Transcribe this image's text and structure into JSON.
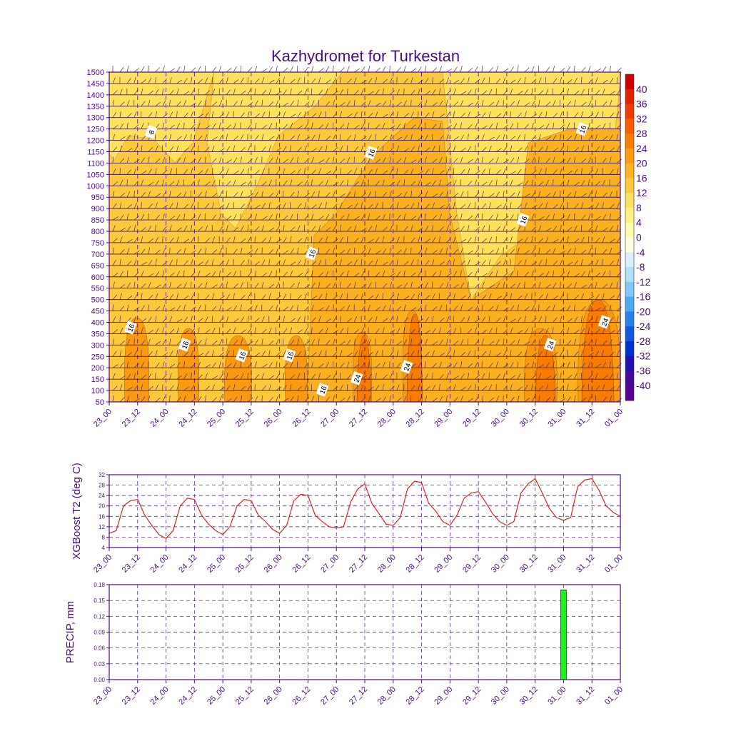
{
  "chart_data": [
    {
      "type": "heatmap",
      "title": "Kazhydromet for Turkestan",
      "x_tick_labels": [
        "23_00",
        "23_12",
        "24_00",
        "24_12",
        "25_00",
        "25_12",
        "26_00",
        "26_12",
        "27_00",
        "27_12",
        "28_00",
        "28_12",
        "29_00",
        "29_12",
        "30_00",
        "30_12",
        "31_00",
        "31_12",
        "01_00"
      ],
      "y_tick_labels": [
        "1500",
        "1450",
        "1400",
        "1350",
        "1300",
        "1250",
        "1200",
        "1150",
        "1100",
        "1050",
        "1000",
        "950",
        "900",
        "850",
        "800",
        "750",
        "700",
        "650",
        "600",
        "550",
        "500",
        "450",
        "400",
        "350",
        "300",
        "250",
        "200",
        "150",
        "100",
        "50"
      ],
      "ylim": [
        50,
        1500
      ],
      "colorbar": {
        "labels": [
          "40",
          "36",
          "32",
          "28",
          "24",
          "20",
          "16",
          "12",
          "8",
          "4",
          "0",
          "-4",
          "-8",
          "-12",
          "-16",
          "-20",
          "-24",
          "-28",
          "-32",
          "-36",
          "-40"
        ],
        "colors": [
          "#cc0000",
          "#e02000",
          "#f03c00",
          "#f85c00",
          "#fa7c00",
          "#fc9a10",
          "#fcb420",
          "#fcc83c",
          "#fde05c",
          "#fef082",
          "#fefcb0",
          "#fefedc",
          "#d8f0fa",
          "#b0e0f8",
          "#80c8f8",
          "#50a8f0",
          "#2880e8",
          "#1058e0",
          "#0030d0",
          "#2010b0",
          "#480898",
          "#5a0090"
        ]
      },
      "contour_labels": [
        "8",
        "16",
        "16",
        "16",
        "16",
        "16",
        "16",
        "16",
        "16",
        "16",
        "24",
        "24",
        "24",
        "24"
      ],
      "wind_barbs": "shown at each pressure level and time step"
    },
    {
      "type": "line",
      "ylabel": "XGBoost T2 (deg C)",
      "ylim": [
        4,
        32
      ],
      "y_ticks": [
        "4",
        "8",
        "12",
        "16",
        "20",
        "24",
        "28",
        "32"
      ],
      "x_tick_labels": [
        "23_00",
        "23_12",
        "24_00",
        "24_12",
        "25_00",
        "25_12",
        "26_00",
        "26_12",
        "27_00",
        "27_12",
        "28_00",
        "28_12",
        "29_00",
        "29_12",
        "30_00",
        "30_12",
        "31_00",
        "31_12",
        "01_00"
      ],
      "line_color": "#e01010",
      "series": [
        {
          "values": [
            9.5,
            10.5,
            20,
            22,
            22.5,
            16.5,
            12.5,
            9,
            7.5,
            10.5,
            20,
            23,
            22.5,
            16.5,
            13,
            10.5,
            9,
            12,
            20,
            22.5,
            22,
            16.5,
            14,
            11,
            9.5,
            12.5,
            22,
            24.5,
            24,
            16.5,
            14,
            12,
            11.5,
            12,
            21.5,
            26.5,
            28.5,
            21,
            17,
            13,
            12.5,
            15.5,
            26.5,
            29.5,
            29,
            21,
            18,
            14,
            12.5,
            16.5,
            23,
            25,
            25.5,
            21.5,
            17,
            14,
            12.5,
            14,
            25,
            28.5,
            30.5,
            25,
            19,
            15.5,
            14.5,
            15.5,
            27.5,
            30,
            30.5,
            26,
            20,
            17.5,
            16
          ]
        }
      ]
    },
    {
      "type": "bar",
      "ylabel": "PRECIP, mm",
      "ylim": [
        0,
        0.18
      ],
      "y_ticks": [
        "0.00",
        "0.03",
        "0.06",
        "0.09",
        "0.12",
        "0.15",
        "0.18"
      ],
      "x_tick_labels": [
        "23_00",
        "23_12",
        "24_00",
        "24_12",
        "25_00",
        "25_12",
        "26_00",
        "26_12",
        "27_00",
        "27_12",
        "28_00",
        "28_12",
        "29_00",
        "29_12",
        "30_00",
        "30_12",
        "31_00",
        "31_12",
        "01_00"
      ],
      "bar_color": "#22ee22",
      "bars": [
        {
          "time_index": 64,
          "value": 0.17
        }
      ]
    }
  ]
}
